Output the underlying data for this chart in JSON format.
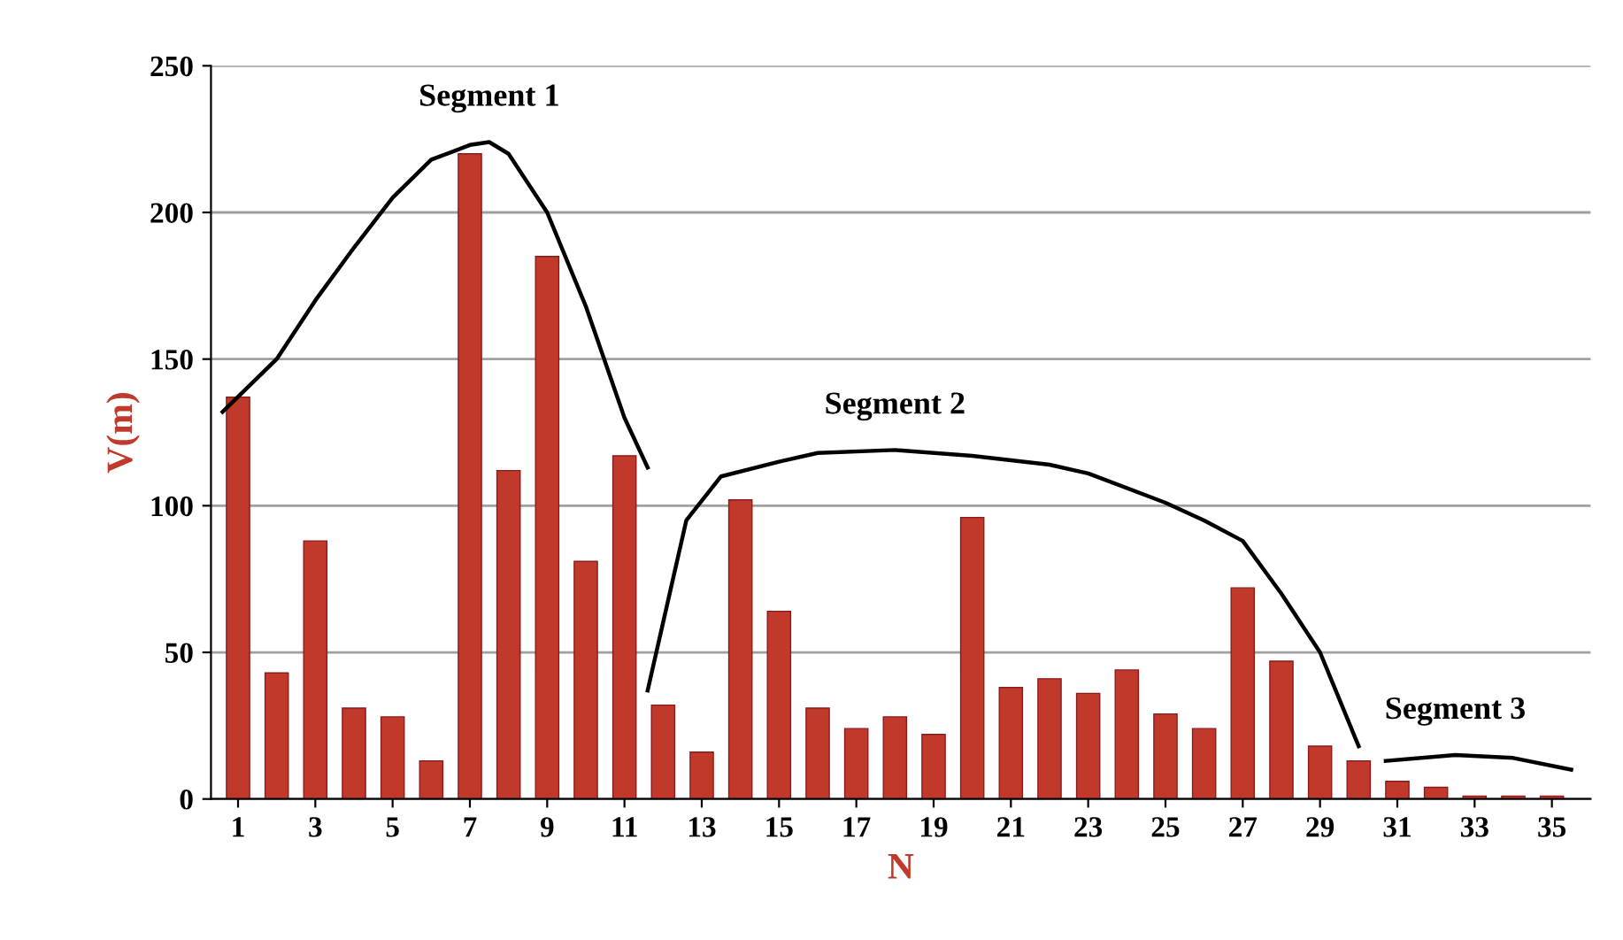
{
  "chart_data": {
    "type": "bar",
    "xlabel": "N",
    "ylabel": "V(m)",
    "x": [
      1,
      2,
      3,
      4,
      5,
      6,
      7,
      8,
      9,
      10,
      11,
      12,
      13,
      14,
      15,
      16,
      17,
      18,
      19,
      20,
      21,
      22,
      23,
      24,
      25,
      26,
      27,
      28,
      29,
      30,
      31,
      32,
      33,
      34,
      35
    ],
    "series": [
      {
        "color": "#c0392b",
        "values": [
          137,
          43,
          88,
          31,
          28,
          13,
          220,
          112,
          185,
          81,
          117,
          32,
          16,
          102,
          64,
          31,
          24,
          28,
          22,
          96,
          38,
          41,
          36,
          44,
          29,
          24,
          72,
          47,
          18,
          13,
          6,
          4,
          1,
          1,
          1
        ]
      },
      {
        "type": "line",
        "name": "Segment 1",
        "color": "#000000",
        "x": [
          0.6,
          2,
          3,
          4,
          5,
          6,
          7,
          7.5,
          8,
          9,
          10,
          11,
          11.6
        ],
        "values": [
          132,
          150,
          170,
          188,
          205,
          218,
          223,
          224,
          220,
          200,
          168,
          130,
          113
        ]
      },
      {
        "type": "line",
        "name": "Segment 2",
        "color": "#000000",
        "x": [
          11.6,
          12.6,
          13.5,
          15,
          16,
          18,
          20,
          22,
          23,
          25,
          26,
          27,
          28,
          29,
          30
        ],
        "values": [
          37,
          95,
          110,
          115,
          118,
          119,
          117,
          114,
          111,
          101,
          95,
          88,
          70,
          50,
          18
        ]
      },
      {
        "type": "line",
        "name": "Segment 3",
        "color": "#000000",
        "x": [
          30.7,
          32.5,
          34,
          35.5
        ],
        "values": [
          13,
          15,
          14,
          10
        ]
      }
    ],
    "xlim": [
      0.3,
      36
    ],
    "xticks": [
      1,
      3,
      5,
      7,
      9,
      11,
      13,
      15,
      17,
      19,
      21,
      23,
      25,
      27,
      29,
      31,
      33,
      35
    ],
    "ylim": [
      0,
      250
    ],
    "yticks": [
      0,
      50,
      100,
      150,
      200,
      250
    ],
    "grid": "y",
    "legend": false,
    "marker": "none",
    "line_style": "solid"
  }
}
